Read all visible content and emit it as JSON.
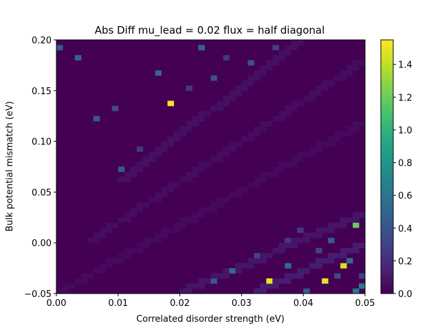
{
  "chart_data": {
    "type": "heatmap",
    "title": "Abs Diff mu_lead = 0.02 flux = half diagonal",
    "xlabel": "Correlated disorder strength (eV)",
    "ylabel": "Bulk potential mismatch (eV)",
    "xlim": [
      0.0,
      0.05
    ],
    "ylim": [
      -0.05,
      0.2
    ],
    "x_ticks": [
      "0.00",
      "0.01",
      "0.02",
      "0.03",
      "0.04",
      "0.05"
    ],
    "y_ticks": [
      "−0.05",
      "0.00",
      "0.05",
      "0.10",
      "0.15",
      "0.20"
    ],
    "colorbar": {
      "colormap": "viridis",
      "range": [
        0.0,
        1.55
      ],
      "ticks": [
        "0.0",
        "0.2",
        "0.4",
        "0.6",
        "0.8",
        "1.0",
        "1.2",
        "1.4"
      ]
    },
    "grid": {
      "x_bins": 50,
      "y_bins": 50
    },
    "background_value": 0.0,
    "diagonal_bands": [
      {
        "from": [
          0.0,
          -0.05
        ],
        "to": [
          0.05,
          0.12
        ],
        "value": 0.04
      },
      {
        "from": [
          0.005,
          0.0
        ],
        "to": [
          0.05,
          0.18
        ],
        "value": 0.05
      },
      {
        "from": [
          0.01,
          0.06
        ],
        "to": [
          0.04,
          0.2
        ],
        "value": 0.06
      },
      {
        "from": [
          0.02,
          -0.05
        ],
        "to": [
          0.05,
          0.03
        ],
        "value": 0.09
      },
      {
        "from": [
          0.032,
          -0.05
        ],
        "to": [
          0.05,
          0.0
        ],
        "value": 0.12
      }
    ],
    "hot_cells": [
      {
        "x": 0.0005,
        "y": 0.1925,
        "value": 0.45
      },
      {
        "x": 0.0035,
        "y": 0.1825,
        "value": 0.5
      },
      {
        "x": 0.0065,
        "y": 0.1225,
        "value": 0.45
      },
      {
        "x": 0.0095,
        "y": 0.1325,
        "value": 0.35
      },
      {
        "x": 0.0105,
        "y": 0.0725,
        "value": 0.45
      },
      {
        "x": 0.0165,
        "y": 0.1675,
        "value": 0.5
      },
      {
        "x": 0.0185,
        "y": 0.1375,
        "value": 1.55
      },
      {
        "x": 0.0235,
        "y": 0.1925,
        "value": 0.5
      },
      {
        "x": 0.0255,
        "y": 0.1625,
        "value": 0.4
      },
      {
        "x": 0.0315,
        "y": 0.1775,
        "value": 0.4
      },
      {
        "x": 0.0355,
        "y": 0.1925,
        "value": 0.3
      },
      {
        "x": 0.0255,
        "y": -0.0375,
        "value": 0.45
      },
      {
        "x": 0.0285,
        "y": -0.0275,
        "value": 0.55
      },
      {
        "x": 0.0345,
        "y": -0.0375,
        "value": 1.5
      },
      {
        "x": 0.0375,
        "y": -0.0225,
        "value": 0.55
      },
      {
        "x": 0.0405,
        "y": -0.0475,
        "value": 0.45
      },
      {
        "x": 0.0435,
        "y": -0.0375,
        "value": 1.5
      },
      {
        "x": 0.0445,
        "y": 0.0025,
        "value": 0.45
      },
      {
        "x": 0.0465,
        "y": -0.0225,
        "value": 1.45
      },
      {
        "x": 0.0475,
        "y": -0.0175,
        "value": 0.55
      },
      {
        "x": 0.0485,
        "y": 0.0175,
        "value": 1.2
      },
      {
        "x": 0.0495,
        "y": -0.0425,
        "value": 0.65
      },
      {
        "x": 0.0485,
        "y": -0.0475,
        "value": 0.6
      },
      {
        "x": 0.0375,
        "y": 0.0025,
        "value": 0.25
      },
      {
        "x": 0.0395,
        "y": 0.0125,
        "value": 0.25
      },
      {
        "x": 0.0425,
        "y": -0.0075,
        "value": 0.3
      },
      {
        "x": 0.0325,
        "y": -0.0125,
        "value": 0.3
      },
      {
        "x": 0.0135,
        "y": 0.0925,
        "value": 0.25
      },
      {
        "x": 0.0215,
        "y": 0.1525,
        "value": 0.25
      },
      {
        "x": 0.0275,
        "y": 0.1825,
        "value": 0.25
      },
      {
        "x": 0.0455,
        "y": -0.0325,
        "value": 0.35
      },
      {
        "x": 0.0495,
        "y": -0.0325,
        "value": 0.3
      }
    ]
  }
}
